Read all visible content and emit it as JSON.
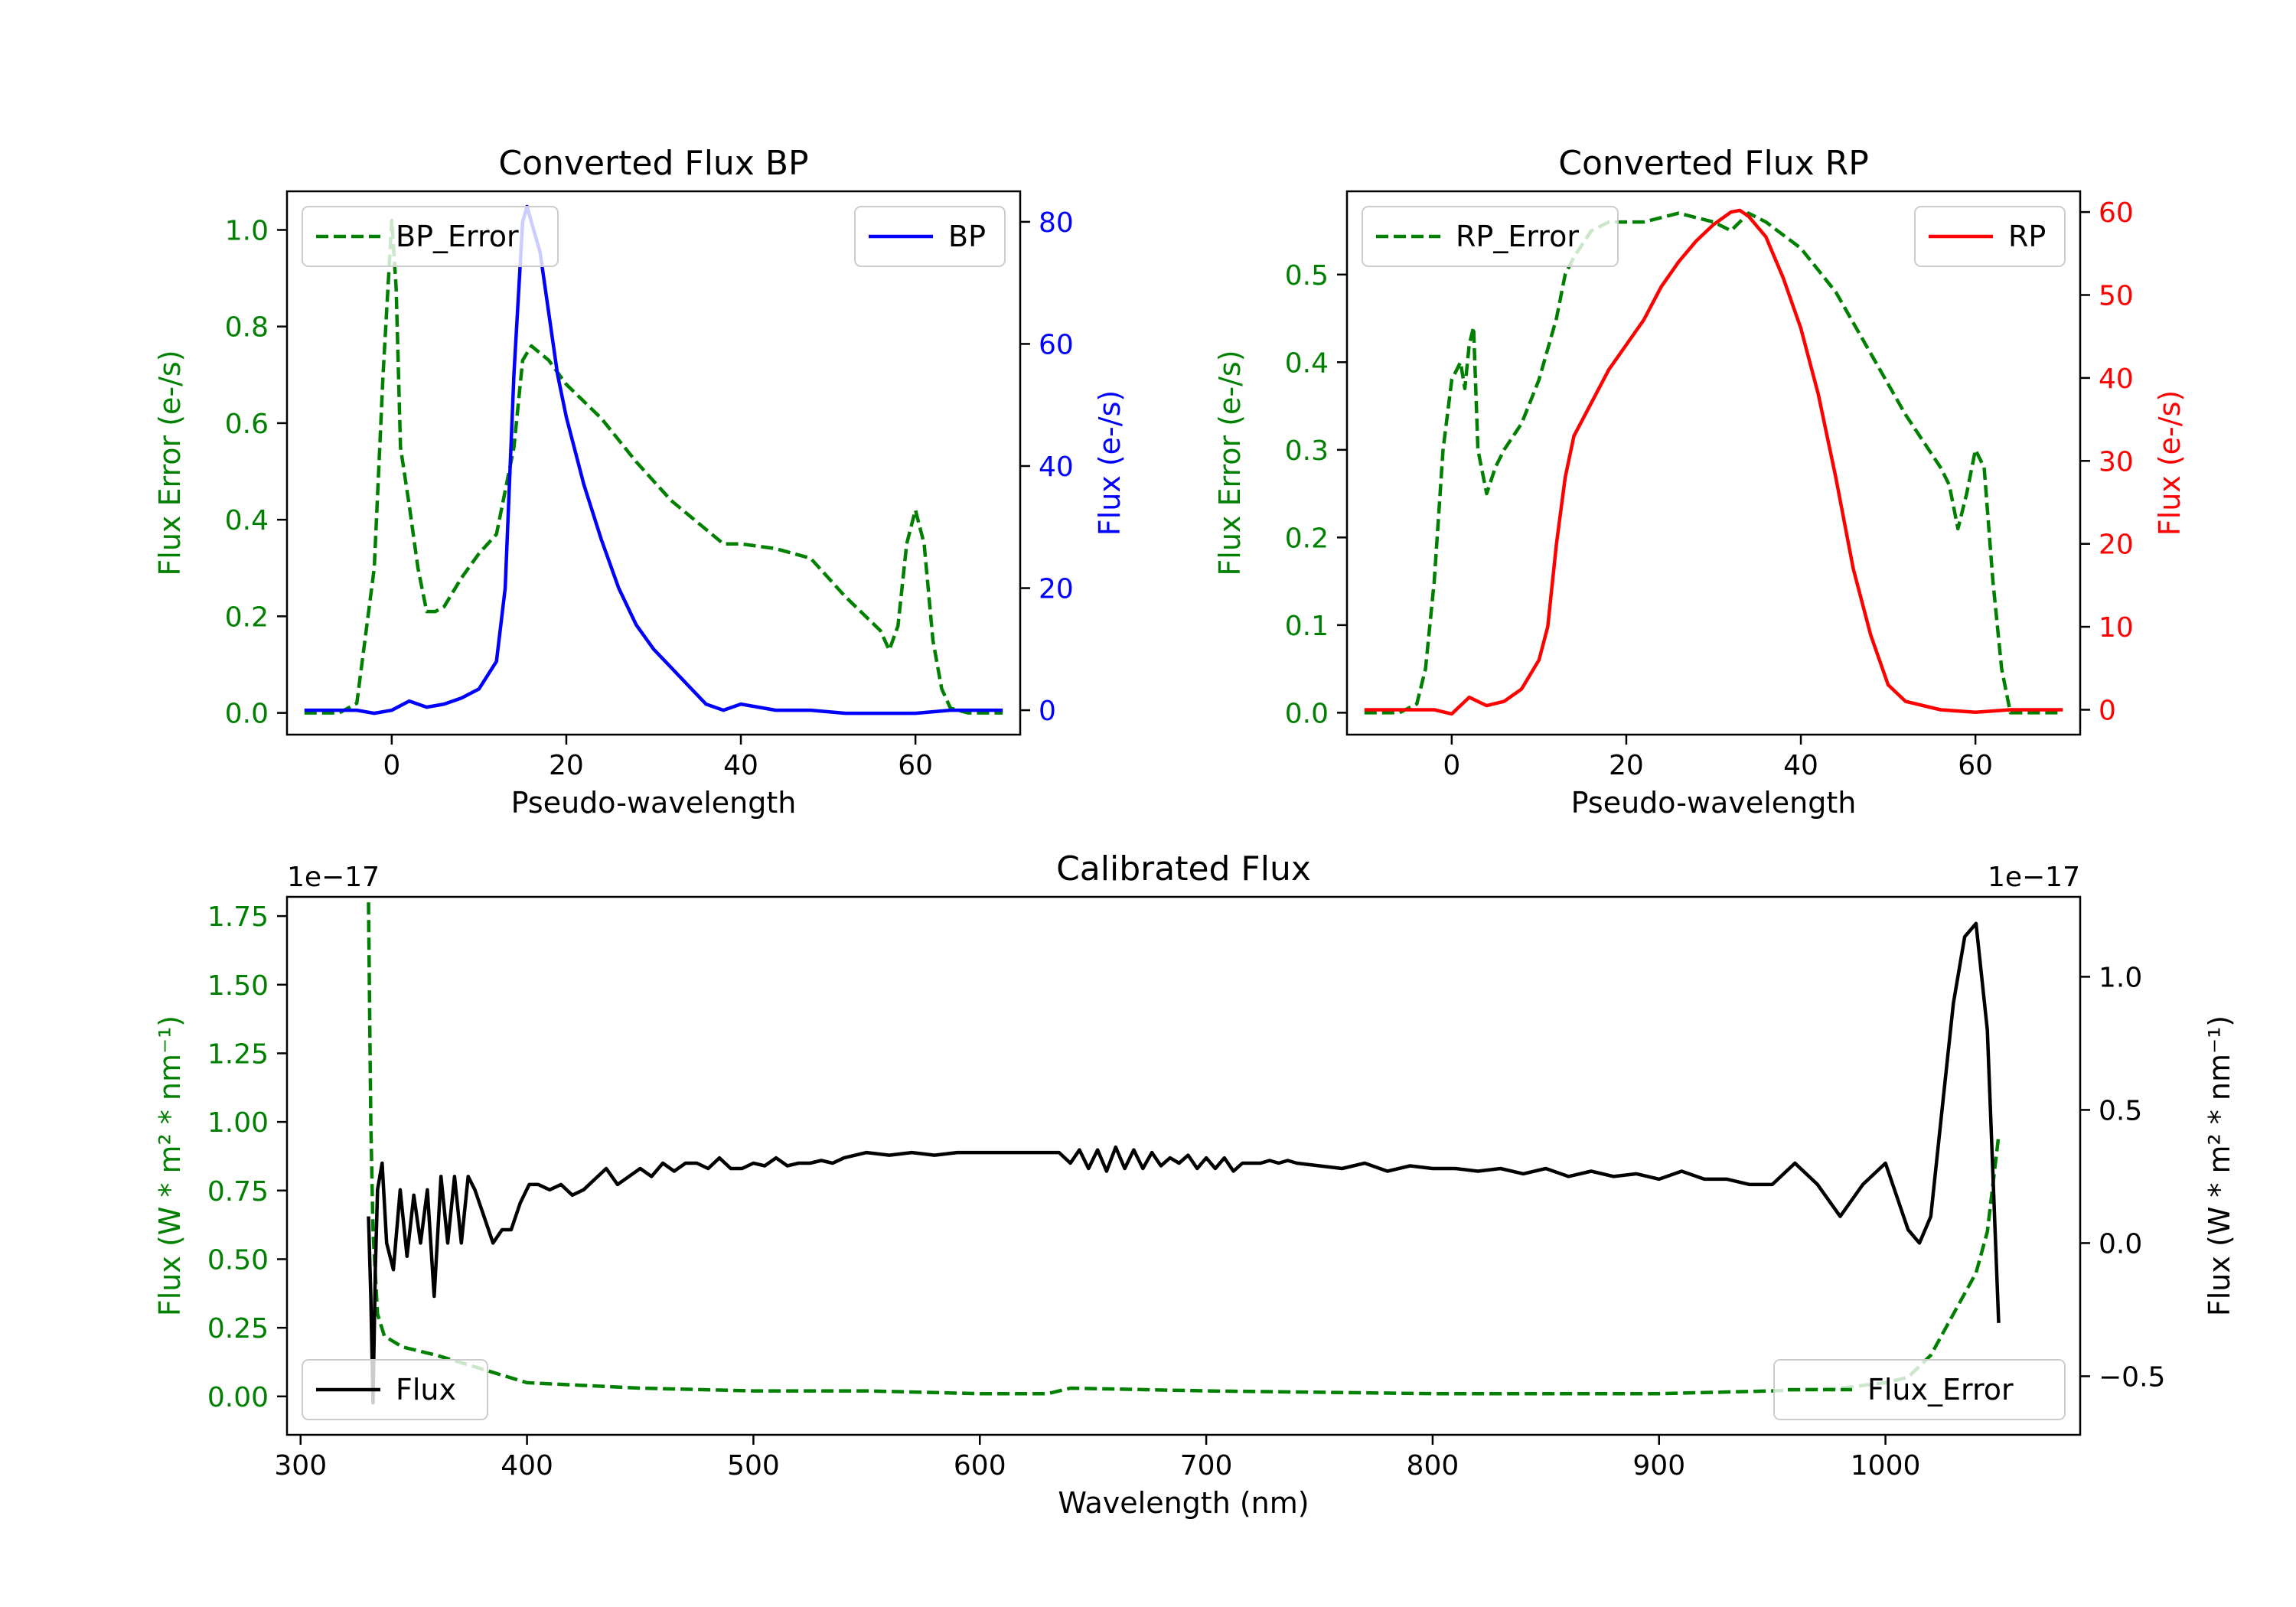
{
  "colors": {
    "bp": "#0000ff",
    "rp": "#ff0000",
    "error": "#008000",
    "flux": "#000000",
    "text": "#000000"
  },
  "chart_data": [
    {
      "id": "bp",
      "type": "line",
      "title": "Converted Flux BP",
      "xlabel": "Pseudo-wavelength",
      "xlim": [
        -12,
        72
      ],
      "xticks": [
        0,
        20,
        40,
        60
      ],
      "left_axis": {
        "label": "Flux Error (e-/s)",
        "color": "#008000",
        "ylim": [
          -0.045,
          1.08
        ],
        "ticks": [
          0.0,
          0.2,
          0.4,
          0.6,
          0.8,
          1.0
        ],
        "tick_labels": [
          "0.0",
          "0.2",
          "0.4",
          "0.6",
          "0.8",
          "1.0"
        ]
      },
      "right_axis": {
        "label": "Flux (e-/s)",
        "color": "#0000ff",
        "ylim": [
          -4,
          85
        ],
        "ticks": [
          0,
          20,
          40,
          60,
          80
        ],
        "tick_labels": [
          "0",
          "20",
          "40",
          "60",
          "80"
        ]
      },
      "series": [
        {
          "name": "BP_Error",
          "axis": "left",
          "style": "dashed",
          "color": "#008000",
          "x": [
            -10,
            -6,
            -4,
            -2,
            -1,
            0,
            0.5,
            1,
            2,
            3,
            4,
            5,
            6,
            8,
            10,
            12,
            14,
            15,
            16,
            18,
            20,
            24,
            28,
            32,
            36,
            38,
            40,
            44,
            48,
            52,
            56,
            57,
            58,
            59,
            60,
            61,
            62,
            63,
            64,
            66,
            70
          ],
          "y": [
            0.0,
            0.0,
            0.02,
            0.3,
            0.7,
            1.02,
            0.88,
            0.55,
            0.43,
            0.3,
            0.21,
            0.21,
            0.22,
            0.28,
            0.33,
            0.37,
            0.55,
            0.73,
            0.76,
            0.73,
            0.68,
            0.61,
            0.52,
            0.44,
            0.38,
            0.35,
            0.35,
            0.34,
            0.32,
            0.24,
            0.17,
            0.13,
            0.18,
            0.35,
            0.42,
            0.35,
            0.15,
            0.05,
            0.01,
            0.0,
            0.0
          ]
        },
        {
          "name": "BP",
          "axis": "right",
          "style": "solid",
          "color": "#0000ff",
          "x": [
            -10,
            -4,
            -2,
            0,
            2,
            4,
            6,
            8,
            10,
            12,
            13,
            14,
            15,
            15.5,
            16,
            17,
            18,
            19,
            20,
            22,
            24,
            26,
            28,
            30,
            32,
            34,
            36,
            38,
            40,
            44,
            48,
            52,
            56,
            60,
            64,
            70
          ],
          "y": [
            0,
            0,
            -0.5,
            0,
            1.5,
            0.5,
            1,
            2,
            3.5,
            8,
            20,
            55,
            80,
            82.5,
            80,
            75,
            65,
            55,
            48,
            37,
            28,
            20,
            14,
            10,
            7,
            4,
            1,
            0,
            1,
            0,
            0,
            -0.5,
            -0.5,
            -0.5,
            0,
            0
          ]
        }
      ],
      "legends": [
        {
          "label": "BP_Error",
          "series": "BP_Error",
          "position": "upper-left"
        },
        {
          "label": "BP",
          "series": "BP",
          "position": "upper-right"
        }
      ]
    },
    {
      "id": "rp",
      "type": "line",
      "title": "Converted Flux RP",
      "xlabel": "Pseudo-wavelength",
      "xlim": [
        -12,
        72
      ],
      "xticks": [
        0,
        20,
        40,
        60
      ],
      "left_axis": {
        "label": "Flux Error (e-/s)",
        "color": "#008000",
        "ylim": [
          -0.025,
          0.595
        ],
        "ticks": [
          0.0,
          0.1,
          0.2,
          0.3,
          0.4,
          0.5
        ],
        "tick_labels": [
          "0.0",
          "0.1",
          "0.2",
          "0.3",
          "0.4",
          "0.5"
        ]
      },
      "right_axis": {
        "label": "Flux (e-/s)",
        "color": "#ff0000",
        "ylim": [
          -3,
          62.5
        ],
        "ticks": [
          0,
          10,
          20,
          30,
          40,
          50,
          60
        ],
        "tick_labels": [
          "0",
          "10",
          "20",
          "30",
          "40",
          "50",
          "60"
        ]
      },
      "series": [
        {
          "name": "RP_Error",
          "axis": "left",
          "style": "dashed",
          "color": "#008000",
          "x": [
            -10,
            -6,
            -4,
            -3,
            -2,
            -1,
            0,
            1,
            1.5,
            2,
            2.5,
            3,
            4,
            5,
            6,
            8,
            10,
            12,
            13,
            14,
            16,
            18,
            22,
            26,
            30,
            32,
            34,
            36,
            40,
            44,
            48,
            52,
            54,
            56,
            57,
            58,
            59,
            60,
            61,
            62,
            63,
            64,
            66,
            70
          ],
          "y": [
            0.0,
            0.0,
            0.01,
            0.05,
            0.15,
            0.3,
            0.38,
            0.4,
            0.37,
            0.42,
            0.44,
            0.3,
            0.25,
            0.28,
            0.3,
            0.33,
            0.38,
            0.45,
            0.5,
            0.52,
            0.55,
            0.56,
            0.56,
            0.57,
            0.56,
            0.55,
            0.57,
            0.56,
            0.53,
            0.48,
            0.41,
            0.34,
            0.31,
            0.28,
            0.26,
            0.21,
            0.25,
            0.3,
            0.28,
            0.15,
            0.05,
            0.0,
            0.0,
            0.0
          ]
        },
        {
          "name": "RP",
          "axis": "right",
          "style": "solid",
          "color": "#ff0000",
          "x": [
            -10,
            -4,
            -2,
            0,
            2,
            4,
            6,
            8,
            10,
            11,
            12,
            13,
            14,
            16,
            18,
            20,
            22,
            24,
            26,
            28,
            30,
            32,
            33,
            34,
            36,
            38,
            40,
            42,
            44,
            46,
            48,
            50,
            52,
            56,
            60,
            64,
            70
          ],
          "y": [
            0,
            0,
            0,
            -0.5,
            1.5,
            0.5,
            1,
            2.5,
            6,
            10,
            20,
            28,
            33,
            37,
            41,
            44,
            47,
            51,
            54,
            56.5,
            58.5,
            60,
            60.2,
            59.5,
            57,
            52,
            46,
            38,
            28,
            17,
            9,
            3,
            1,
            0,
            -0.3,
            0,
            0
          ]
        }
      ],
      "legends": [
        {
          "label": "RP_Error",
          "series": "RP_Error",
          "position": "upper-left"
        },
        {
          "label": "RP",
          "series": "RP",
          "position": "upper-right"
        }
      ]
    },
    {
      "id": "cal",
      "type": "line",
      "title": "Calibrated Flux",
      "xlabel": "Wavelength (nm)",
      "xlim": [
        294,
        1086
      ],
      "xticks": [
        300,
        400,
        500,
        600,
        700,
        800,
        900,
        1000
      ],
      "left_axis": {
        "label": "Flux (W * m² * nm⁻¹)",
        "color": "#008000",
        "offset_text": "1e−17",
        "ylim": [
          -0.14,
          1.82
        ],
        "ticks": [
          0.0,
          0.25,
          0.5,
          0.75,
          1.0,
          1.25,
          1.5,
          1.75
        ],
        "tick_labels": [
          "0.00",
          "0.25",
          "0.50",
          "0.75",
          "1.00",
          "1.25",
          "1.50",
          "1.75"
        ]
      },
      "right_axis": {
        "label": "Flux (W * m² * nm⁻¹)",
        "color": "#000000",
        "offset_text": "1e−17",
        "ylim": [
          -0.72,
          1.3
        ],
        "ticks": [
          -0.5,
          0.0,
          0.5,
          1.0
        ],
        "tick_labels": [
          "−0.5",
          "0.0",
          "0.5",
          "1.0"
        ]
      },
      "series": [
        {
          "name": "Flux_Error",
          "axis": "left",
          "style": "dashed",
          "color": "#008000",
          "x": [
            330,
            331,
            332,
            334,
            337,
            345,
            360,
            380,
            400,
            450,
            500,
            550,
            600,
            630,
            640,
            700,
            800,
            900,
            950,
            980,
            1000,
            1010,
            1020,
            1030,
            1040,
            1045,
            1050
          ],
          "y": [
            1.8,
            1.0,
            0.6,
            0.3,
            0.22,
            0.18,
            0.15,
            0.1,
            0.05,
            0.03,
            0.02,
            0.02,
            0.01,
            0.01,
            0.03,
            0.02,
            0.01,
            0.01,
            0.02,
            0.03,
            0.05,
            0.07,
            0.15,
            0.3,
            0.45,
            0.6,
            0.95
          ]
        },
        {
          "name": "Flux",
          "axis": "right",
          "style": "solid",
          "color": "#000000",
          "x": [
            330,
            331,
            332,
            333,
            334,
            336,
            338,
            341,
            344,
            347,
            350,
            353,
            356,
            359,
            362,
            365,
            368,
            371,
            374,
            377,
            381,
            385,
            389,
            393,
            397,
            401,
            405,
            410,
            415,
            420,
            425,
            430,
            435,
            440,
            445,
            450,
            455,
            460,
            465,
            470,
            475,
            480,
            485,
            490,
            495,
            500,
            505,
            510,
            515,
            520,
            525,
            530,
            535,
            540,
            550,
            560,
            570,
            580,
            590,
            600,
            610,
            620,
            630,
            635,
            640,
            644,
            648,
            652,
            656,
            660,
            664,
            668,
            672,
            676,
            680,
            684,
            688,
            692,
            696,
            700,
            704,
            708,
            712,
            716,
            720,
            724,
            728,
            732,
            736,
            740,
            750,
            760,
            770,
            780,
            790,
            800,
            810,
            820,
            830,
            840,
            850,
            860,
            870,
            880,
            890,
            900,
            910,
            920,
            930,
            940,
            950,
            960,
            970,
            980,
            990,
            1000,
            1010,
            1015,
            1020,
            1025,
            1030,
            1035,
            1040,
            1045,
            1050
          ],
          "y": [
            0.1,
            -0.2,
            -0.6,
            -0.1,
            0.2,
            0.3,
            0.0,
            -0.1,
            0.2,
            -0.05,
            0.18,
            0.0,
            0.2,
            -0.2,
            0.25,
            0.0,
            0.25,
            0.0,
            0.25,
            0.2,
            0.1,
            0.0,
            0.05,
            0.05,
            0.15,
            0.22,
            0.22,
            0.2,
            0.22,
            0.18,
            0.2,
            0.24,
            0.28,
            0.22,
            0.25,
            0.28,
            0.25,
            0.3,
            0.27,
            0.3,
            0.3,
            0.28,
            0.32,
            0.28,
            0.28,
            0.3,
            0.29,
            0.32,
            0.29,
            0.3,
            0.3,
            0.31,
            0.3,
            0.32,
            0.34,
            0.33,
            0.34,
            0.33,
            0.34,
            0.34,
            0.34,
            0.34,
            0.34,
            0.34,
            0.3,
            0.35,
            0.28,
            0.35,
            0.27,
            0.36,
            0.28,
            0.35,
            0.28,
            0.34,
            0.29,
            0.32,
            0.3,
            0.33,
            0.28,
            0.32,
            0.28,
            0.32,
            0.27,
            0.3,
            0.3,
            0.3,
            0.31,
            0.3,
            0.31,
            0.3,
            0.29,
            0.28,
            0.3,
            0.27,
            0.29,
            0.28,
            0.28,
            0.27,
            0.28,
            0.26,
            0.28,
            0.25,
            0.27,
            0.25,
            0.26,
            0.24,
            0.27,
            0.24,
            0.24,
            0.22,
            0.22,
            0.3,
            0.22,
            0.1,
            0.22,
            0.3,
            0.05,
            0.0,
            0.1,
            0.5,
            0.9,
            1.15,
            1.2,
            0.8,
            -0.3
          ]
        }
      ],
      "legends": [
        {
          "label": "Flux",
          "series": "Flux",
          "position": "lower-left"
        },
        {
          "label": "Flux_Error",
          "series": "Flux_Error",
          "position": "lower-right"
        }
      ]
    }
  ]
}
